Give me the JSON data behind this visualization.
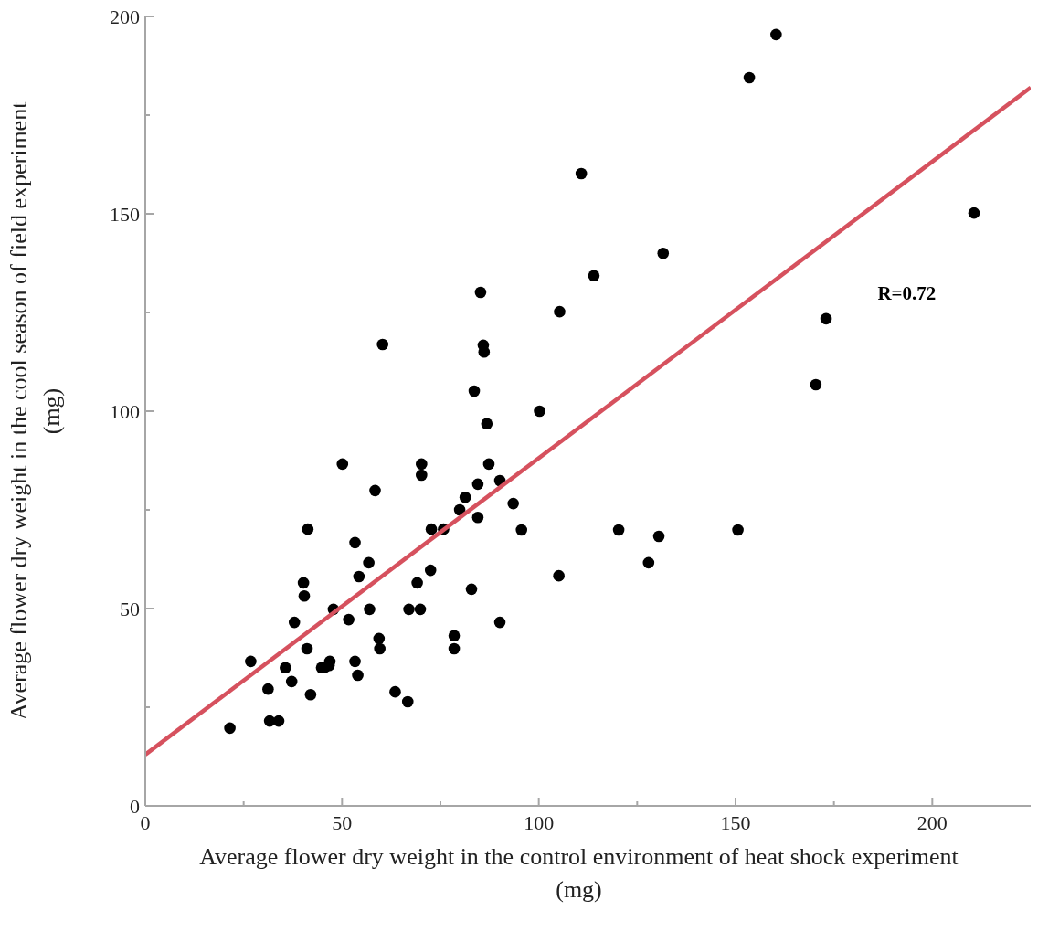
{
  "chart_data": {
    "type": "scatter",
    "xlabel": "Average flower dry weight in the control environment of heat shock experiment (mg)",
    "ylabel": "Average flower dry weight in the cool season of field experiment (mg)",
    "xlim": [
      0,
      225
    ],
    "ylim": [
      0,
      200
    ],
    "xticks": [
      0,
      {
        "value": 25,
        "label": null
      },
      50,
      {
        "value": 75,
        "label": null
      },
      100,
      {
        "value": 125,
        "label": null
      },
      150,
      {
        "value": 175,
        "label": null
      },
      200
    ],
    "yticks": [
      0,
      {
        "value": 25,
        "label": null
      },
      50,
      {
        "value": 75,
        "label": null
      },
      100,
      {
        "value": 125,
        "label": null
      },
      150,
      {
        "value": 175,
        "label": null
      },
      200
    ],
    "grid": false,
    "annotations": [
      "R=0.72"
    ],
    "series": [
      {
        "color": "#000000",
        "marker": "circle",
        "x": [
          21.5,
          26.8,
          31.2,
          31.6,
          33.9,
          35.6,
          37.2,
          37.9,
          40.2,
          40.4,
          41.1,
          41.3,
          42.0,
          44.8,
          45.7,
          46.7,
          46.9,
          47.8,
          50.1,
          51.7,
          53.3,
          53.3,
          54.0,
          54.3,
          56.8,
          57.0,
          58.4,
          59.4,
          59.6,
          60.3,
          63.5,
          66.7,
          67.0,
          69.1,
          69.9,
          70.2,
          70.2,
          72.5,
          72.7,
          75.8,
          78.5,
          78.5,
          79.9,
          81.3,
          82.9,
          83.6,
          84.5,
          84.5,
          85.2,
          85.9,
          86.1,
          86.8,
          87.3,
          90.1,
          90.1,
          93.5,
          95.6,
          100.2,
          105.1,
          105.3,
          110.8,
          114.0,
          120.3,
          127.9,
          130.5,
          131.6,
          150.6,
          153.5,
          160.3,
          170.4,
          173.0,
          210.6
        ],
        "values": [
          19.7,
          36.6,
          29.6,
          21.5,
          21.5,
          35.0,
          31.5,
          46.5,
          56.5,
          53.2,
          39.8,
          70.1,
          28.2,
          35.0,
          35.2,
          35.6,
          36.6,
          49.8,
          86.6,
          47.2,
          66.7,
          36.6,
          33.1,
          58.1,
          61.6,
          49.8,
          79.9,
          42.4,
          39.8,
          116.9,
          28.9,
          26.4,
          49.8,
          56.5,
          49.8,
          86.6,
          83.8,
          59.7,
          70.1,
          70.1,
          43.1,
          39.8,
          75.0,
          78.2,
          54.9,
          105.1,
          81.5,
          73.1,
          130.1,
          116.7,
          115.0,
          96.8,
          86.6,
          82.4,
          46.5,
          76.6,
          69.9,
          100.0,
          58.3,
          125.2,
          160.2,
          134.3,
          69.9,
          61.6,
          68.3,
          140.0,
          69.9,
          184.5,
          195.4,
          106.7,
          123.4,
          150.2
        ]
      },
      {
        "type": "line",
        "color": "#d6515e",
        "x": [
          0,
          225
        ],
        "values": [
          13,
          182
        ],
        "marker": "none",
        "line_style": "solid"
      }
    ]
  }
}
